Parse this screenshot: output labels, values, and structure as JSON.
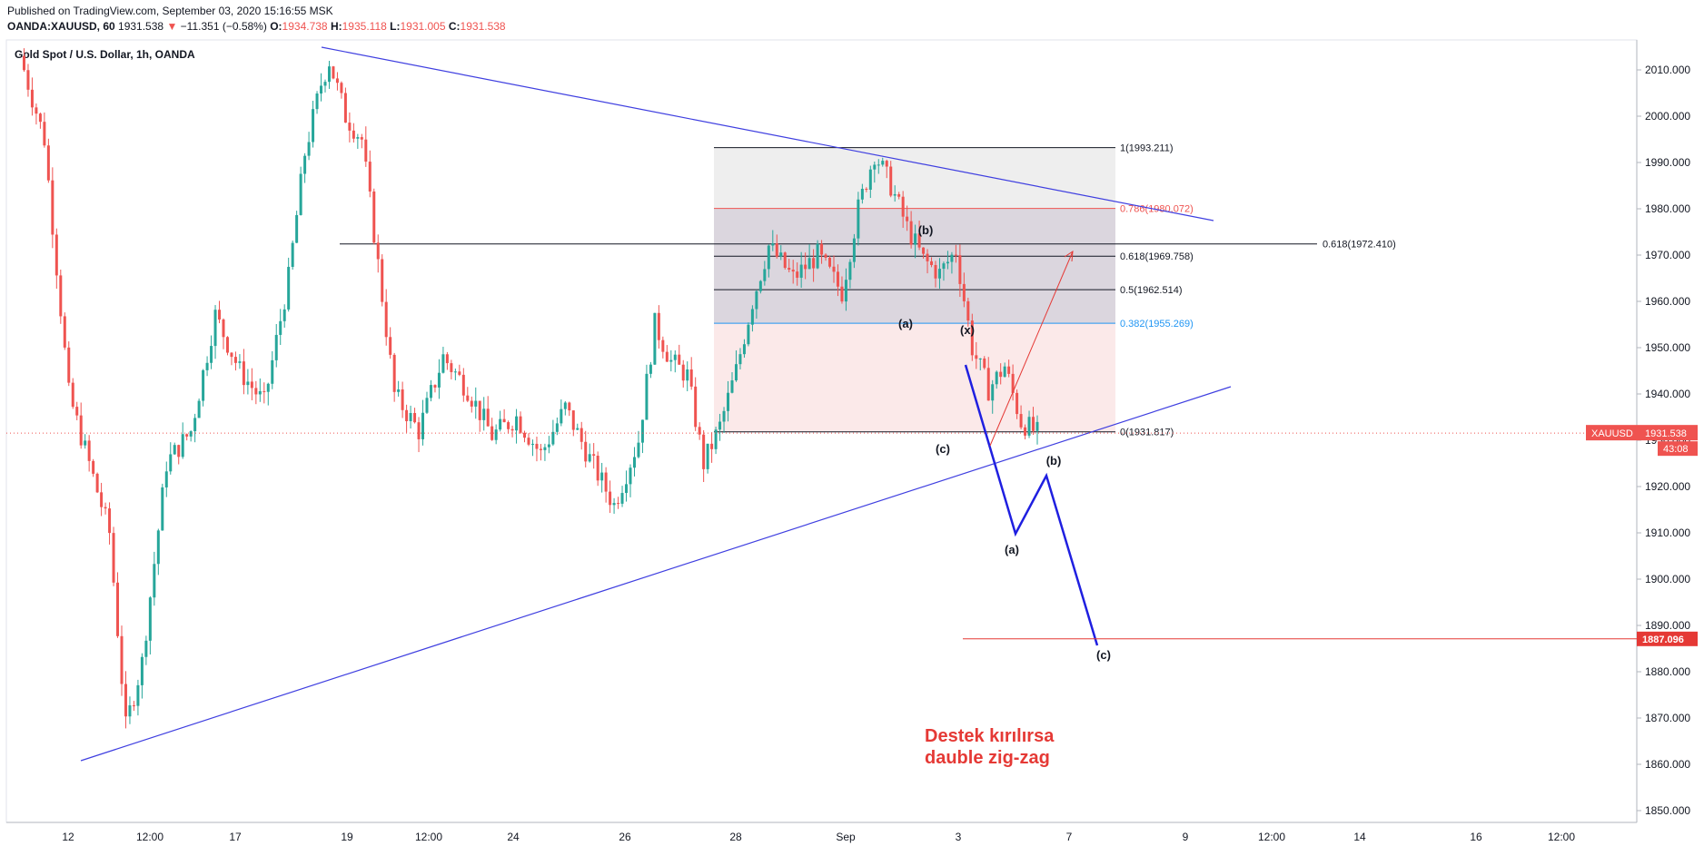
{
  "header": {
    "published": "Published on TradingView.com, September 03, 2020 15:16:55 MSK",
    "symbol": "OANDA:XAUUSD, 60",
    "last": "1931.538",
    "change": "−11.351 (−0.58%)",
    "o_label": "O:",
    "o_val": "1934.738",
    "h_label": "H:",
    "h_val": "1935.118",
    "l_label": "L:",
    "l_val": "1931.005",
    "c_label": "C:",
    "c_val": "1931.538",
    "down_arrow": "▼"
  },
  "chart_data": {
    "type": "candlestick",
    "title": "Gold Spot / U.S. Dollar, 1h, OANDA",
    "ylim": [
      1847,
      2016
    ],
    "y_ticks": [
      1850,
      1860,
      1870,
      1880,
      1890,
      1900,
      1910,
      1920,
      1930,
      1940,
      1950,
      1960,
      1970,
      1980,
      1990,
      2000,
      2010
    ],
    "x_ticks": [
      "12",
      "12:00",
      "17",
      "19",
      "12:00",
      "24",
      "26",
      "28",
      "Sep",
      "3",
      "7",
      "9",
      "12:00",
      "14",
      "16",
      "12:00"
    ],
    "price_path": [
      [
        0,
        2013
      ],
      [
        6,
        1995
      ],
      [
        12,
        1940
      ],
      [
        18,
        1922
      ],
      [
        22,
        1910
      ],
      [
        26,
        1868
      ],
      [
        30,
        1882
      ],
      [
        36,
        1925
      ],
      [
        42,
        1932
      ],
      [
        48,
        1957
      ],
      [
        54,
        1945
      ],
      [
        60,
        1938
      ],
      [
        66,
        1965
      ],
      [
        70,
        1992
      ],
      [
        74,
        2007
      ],
      [
        76,
        2012
      ],
      [
        80,
        2000
      ],
      [
        84,
        1995
      ],
      [
        88,
        1968
      ],
      [
        92,
        1940
      ],
      [
        98,
        1932
      ],
      [
        104,
        1948
      ],
      [
        110,
        1941
      ],
      [
        116,
        1931
      ],
      [
        122,
        1935
      ],
      [
        128,
        1927
      ],
      [
        134,
        1937
      ],
      [
        140,
        1926
      ],
      [
        146,
        1916
      ],
      [
        152,
        1930
      ],
      [
        156,
        1955
      ],
      [
        160,
        1947
      ],
      [
        164,
        1944
      ],
      [
        168,
        1925
      ],
      [
        172,
        1933
      ],
      [
        176,
        1945
      ],
      [
        180,
        1960
      ],
      [
        184,
        1972
      ],
      [
        190,
        1965
      ],
      [
        196,
        1970
      ],
      [
        202,
        1962
      ],
      [
        206,
        1980
      ],
      [
        210,
        1992
      ],
      [
        214,
        1985
      ],
      [
        218,
        1976
      ],
      [
        222,
        1969
      ],
      [
        226,
        1966
      ],
      [
        230,
        1971
      ],
      [
        234,
        1950
      ],
      [
        238,
        1941
      ],
      [
        242,
        1946
      ],
      [
        246,
        1934
      ],
      [
        250,
        1931.5
      ]
    ],
    "fibonacci": {
      "levels": [
        {
          "label": "1(1993.211)",
          "price": 1993.211,
          "color": "#131722"
        },
        {
          "label": "0.786(1980.072)",
          "price": 1980.072,
          "color": "#ef5350"
        },
        {
          "label": "0.618(1969.758)",
          "price": 1969.758,
          "color": "#131722"
        },
        {
          "label": "0.5(1962.514)",
          "price": 1962.514,
          "color": "#131722"
        },
        {
          "label": "0.382(1955.269)",
          "price": 1955.269,
          "color": "#2196f3"
        },
        {
          "label": "0(1931.817)",
          "price": 1931.817,
          "color": "#131722"
        }
      ],
      "extension": {
        "label": "0.618(1972.410)",
        "price": 1972.41
      }
    },
    "wave_labels": [
      {
        "text": "(b)",
        "at": "first-b"
      },
      {
        "text": "(a)",
        "at": "first-a"
      },
      {
        "text": "(x)",
        "at": "x"
      },
      {
        "text": "(c)",
        "at": "first-c"
      },
      {
        "text": "(b)",
        "at": "proj-b"
      },
      {
        "text": "(a)",
        "at": "proj-a"
      },
      {
        "text": "(c)",
        "at": "proj-c"
      }
    ],
    "projection_target": 1887.096,
    "current_price": "1931.538",
    "price_tag": "XAUUSD",
    "countdown": "43:08",
    "target_label": "1887.096",
    "annotation": [
      "Destek kırılırsa",
      "dauble zig-zag"
    ],
    "colors": {
      "up": "#26a69a",
      "down": "#ef5350",
      "trendline": "#3f3fe0",
      "projection": "#1f1fe0",
      "target": "#e53935"
    }
  }
}
